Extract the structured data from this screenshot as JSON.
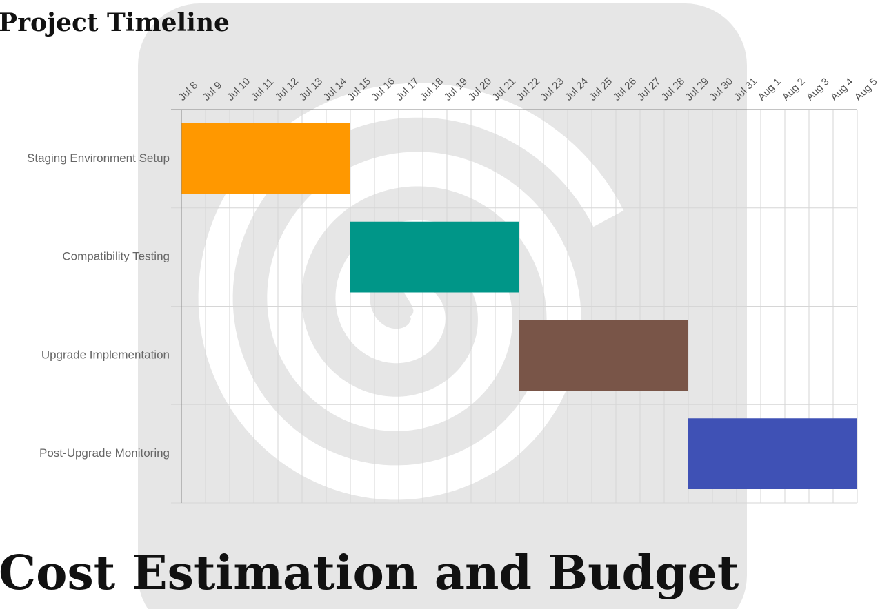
{
  "page": {
    "heading": "Project Timeline",
    "next_heading": "Cost Estimation and Budget"
  },
  "chart_data": {
    "type": "gantt",
    "dates": [
      "Jul 8",
      "Jul 9",
      "Jul 10",
      "Jul 11",
      "Jul 12",
      "Jul 13",
      "Jul 14",
      "Jul 15",
      "Jul 16",
      "Jul 17",
      "Jul 18",
      "Jul 19",
      "Jul 20",
      "Jul 21",
      "Jul 22",
      "Jul 23",
      "Jul 24",
      "Jul 25",
      "Jul 26",
      "Jul 27",
      "Jul 28",
      "Jul 29",
      "Jul 30",
      "Jul 31",
      "Aug 1",
      "Aug 2",
      "Aug 3",
      "Aug 4",
      "Aug 5"
    ],
    "tasks": [
      {
        "name": "Staging Environment Setup",
        "start": "Jul 8",
        "end": "Jul 15",
        "color": "#ff9800"
      },
      {
        "name": "Compatibility Testing",
        "start": "Jul 15",
        "end": "Jul 22",
        "color": "#009688"
      },
      {
        "name": "Upgrade Implementation",
        "start": "Jul 22",
        "end": "Jul 29",
        "color": "#795548"
      },
      {
        "name": "Post-Upgrade Monitoring",
        "start": "Jul 29",
        "end": "Aug 5",
        "color": "#3f51b5"
      }
    ],
    "grid": true
  }
}
